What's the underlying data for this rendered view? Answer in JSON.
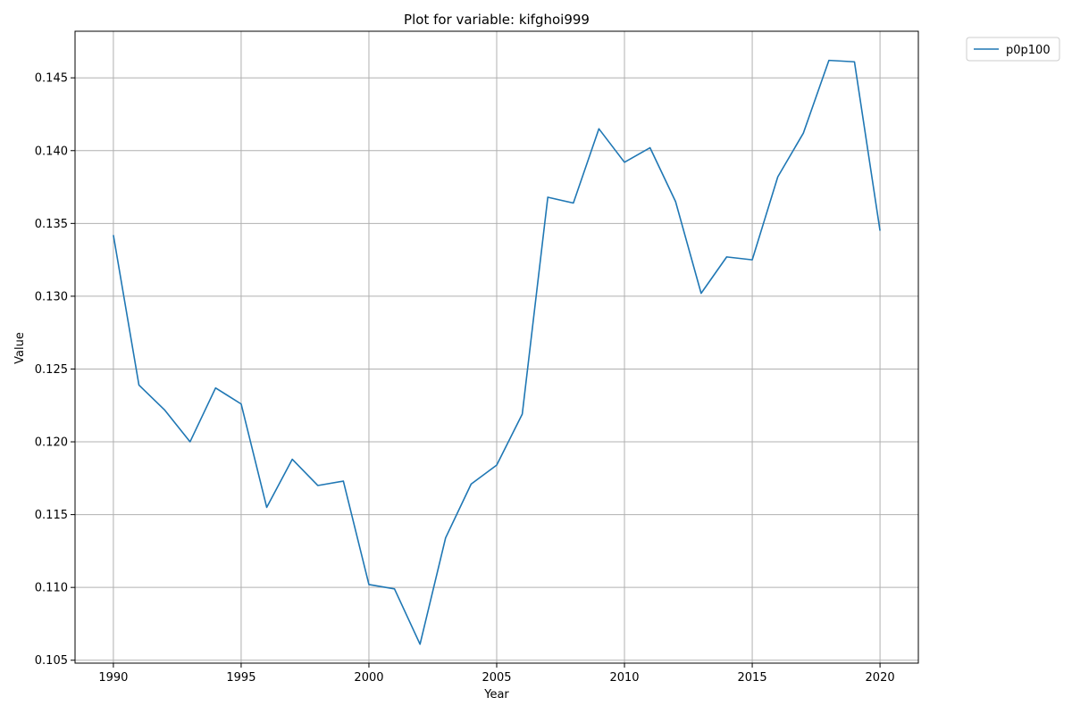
{
  "chart_data": {
    "type": "line",
    "title": "Plot for variable: kifghoi999",
    "xlabel": "Year",
    "ylabel": "Value",
    "xlim": [
      1988.5,
      2021.5
    ],
    "ylim": [
      0.1048,
      0.1482
    ],
    "xticks": [
      1990,
      1995,
      2000,
      2005,
      2010,
      2015,
      2020
    ],
    "yticks": [
      0.105,
      0.11,
      0.115,
      0.12,
      0.125,
      0.13,
      0.135,
      0.14,
      0.145
    ],
    "ytick_labels": [
      "0.105",
      "0.110",
      "0.115",
      "0.120",
      "0.125",
      "0.130",
      "0.135",
      "0.140",
      "0.145"
    ],
    "grid": true,
    "legend_placement": "outside-top-right",
    "line_color": "#1f77b4",
    "x": [
      1990,
      1991,
      1992,
      1993,
      1994,
      1995,
      1996,
      1997,
      1998,
      1999,
      2000,
      2001,
      2002,
      2003,
      2004,
      2005,
      2006,
      2007,
      2008,
      2009,
      2010,
      2011,
      2012,
      2013,
      2014,
      2015,
      2016,
      2017,
      2018,
      2019,
      2020
    ],
    "series": [
      {
        "name": "p0p100",
        "values": [
          0.1342,
          0.1239,
          0.1222,
          0.12,
          0.1237,
          0.1226,
          0.1155,
          0.1188,
          0.117,
          0.1173,
          0.1102,
          0.1099,
          0.1061,
          0.1134,
          0.1171,
          0.1184,
          0.1219,
          0.1368,
          0.1364,
          0.1415,
          0.1392,
          0.1402,
          0.1365,
          0.1302,
          0.1327,
          0.1325,
          0.1382,
          0.1412,
          0.1462,
          0.1461,
          0.1345
        ]
      }
    ]
  }
}
